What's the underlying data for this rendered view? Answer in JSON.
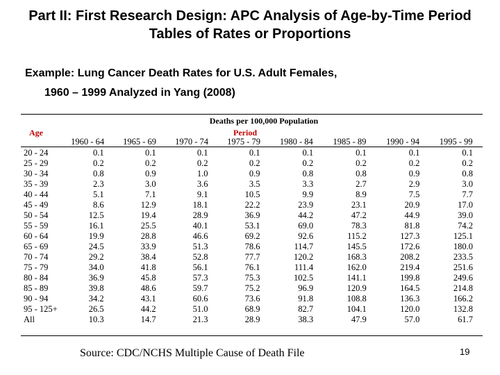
{
  "slide": {
    "title": "Part II: First Research Design: APC Analysis of Age-by-Time Period Tables of Rates or Proportions",
    "subtitle_line1": "Example: Lung Cancer Death Rates for U.S. Adult Females,",
    "subtitle_line2": "1960 – 1999 Analyzed in Yang (2008)",
    "source": "Source: CDC/NCHS Multiple Cause of Death File",
    "page_number": "19"
  },
  "table": {
    "main_header": "Deaths per 100,000 Population",
    "age_header": "Age",
    "period_header": "Period",
    "periods": [
      "1960 - 64",
      "1965 - 69",
      "1970 - 74",
      "1975 - 79",
      "1980 - 84",
      "1985 - 89",
      "1990 - 94",
      "1995 - 99"
    ],
    "rows": [
      {
        "age": "20 - 24",
        "values": [
          "0.1",
          "0.1",
          "0.1",
          "0.1",
          "0.1",
          "0.1",
          "0.1",
          "0.1"
        ]
      },
      {
        "age": "25 - 29",
        "values": [
          "0.2",
          "0.2",
          "0.2",
          "0.2",
          "0.2",
          "0.2",
          "0.2",
          "0.2"
        ]
      },
      {
        "age": "30 - 34",
        "values": [
          "0.8",
          "0.9",
          "1.0",
          "0.9",
          "0.8",
          "0.8",
          "0.9",
          "0.8"
        ]
      },
      {
        "age": "35 - 39",
        "values": [
          "2.3",
          "3.0",
          "3.6",
          "3.5",
          "3.3",
          "2.7",
          "2.9",
          "3.0"
        ]
      },
      {
        "age": "40 - 44",
        "values": [
          "5.1",
          "7.1",
          "9.1",
          "10.5",
          "9.9",
          "8.9",
          "7.5",
          "7.7"
        ]
      },
      {
        "age": "45 - 49",
        "values": [
          "8.6",
          "12.9",
          "18.1",
          "22.2",
          "23.9",
          "23.1",
          "20.9",
          "17.0"
        ]
      },
      {
        "age": "50 - 54",
        "values": [
          "12.5",
          "19.4",
          "28.9",
          "36.9",
          "44.2",
          "47.2",
          "44.9",
          "39.0"
        ]
      },
      {
        "age": "55 - 59",
        "values": [
          "16.1",
          "25.5",
          "40.1",
          "53.1",
          "69.0",
          "78.3",
          "81.8",
          "74.2"
        ]
      },
      {
        "age": "60 - 64",
        "values": [
          "19.9",
          "28.8",
          "46.6",
          "69.2",
          "92.6",
          "115.2",
          "127.3",
          "125.1"
        ]
      },
      {
        "age": "65 - 69",
        "values": [
          "24.5",
          "33.9",
          "51.3",
          "78.6",
          "114.7",
          "145.5",
          "172.6",
          "180.0"
        ]
      },
      {
        "age": "70 - 74",
        "values": [
          "29.2",
          "38.4",
          "52.8",
          "77.7",
          "120.2",
          "168.3",
          "208.2",
          "233.5"
        ]
      },
      {
        "age": "75 - 79",
        "values": [
          "34.0",
          "41.8",
          "56.1",
          "76.1",
          "111.4",
          "162.0",
          "219.4",
          "251.6"
        ]
      },
      {
        "age": "80 - 84",
        "values": [
          "36.9",
          "45.8",
          "57.3",
          "75.3",
          "102.5",
          "141.1",
          "199.8",
          "249.6"
        ]
      },
      {
        "age": "85 - 89",
        "values": [
          "39.8",
          "48.6",
          "59.7",
          "75.2",
          "96.9",
          "120.9",
          "164.5",
          "214.8"
        ]
      },
      {
        "age": "90 - 94",
        "values": [
          "34.2",
          "43.1",
          "60.6",
          "73.6",
          "91.8",
          "108.8",
          "136.3",
          "166.2"
        ]
      },
      {
        "age": "95 - 125+",
        "values": [
          "26.5",
          "44.2",
          "51.0",
          "68.9",
          "82.7",
          "104.1",
          "120.0",
          "132.8"
        ]
      },
      {
        "age": "All",
        "values": [
          "10.3",
          "14.7",
          "21.3",
          "28.9",
          "38.3",
          "47.9",
          "57.0",
          "61.7"
        ]
      }
    ]
  }
}
